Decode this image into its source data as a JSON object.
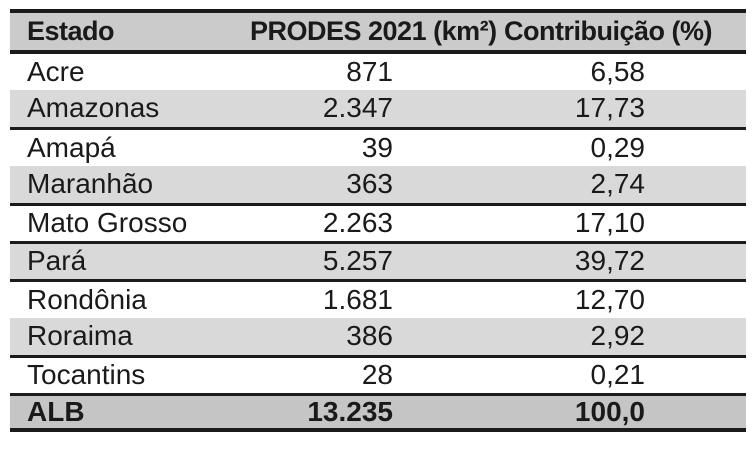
{
  "chart_data": {
    "type": "table",
    "columns": [
      {
        "key": "estado",
        "label": "Estado"
      },
      {
        "key": "prodes_2021_km2",
        "label": "PRODES 2021 (km²)"
      },
      {
        "key": "contribuicao_pct",
        "label": "Contribuição (%)"
      }
    ],
    "rows": [
      [
        "Acre",
        "871",
        "6,58"
      ],
      [
        "Amazonas",
        "2.347",
        "17,73"
      ],
      [
        "Amapá",
        "39",
        "0,29"
      ],
      [
        "Maranhão",
        "363",
        "2,74"
      ],
      [
        "Mato Grosso",
        "2.263",
        "17,10"
      ],
      [
        "Pará",
        "5.257",
        "39,72"
      ],
      [
        "Rondônia",
        "1.681",
        "12,70"
      ],
      [
        "Roraima",
        "386",
        "2,92"
      ],
      [
        "Tocantins",
        "28",
        "0,21"
      ]
    ],
    "total_row": [
      "ALB",
      "13.235",
      "100,0"
    ],
    "values_km2": [
      871,
      2347,
      39,
      363,
      2263,
      5257,
      1681,
      386,
      28
    ],
    "values_contribution_pct": [
      6.58,
      17.73,
      0.29,
      2.74,
      17.1,
      39.72,
      12.7,
      2.92,
      0.21
    ],
    "total_km2": 13235,
    "total_contribution_pct": 100.0,
    "layout": {
      "shaded_row_indexes": [
        1,
        3,
        5,
        7
      ],
      "row_separators_after": [
        1,
        3,
        4,
        5,
        7,
        8
      ],
      "legend": "none",
      "grid": "horizontal-rules-only",
      "colors": {
        "header_bg": "#cbcbcb",
        "shaded_row_bg": "#d9d9d9",
        "total_row_bg": "#c5c5c5",
        "rule": "#1b1b1b",
        "text": "#1a1a1a",
        "page_bg": "#ffffff"
      }
    }
  }
}
